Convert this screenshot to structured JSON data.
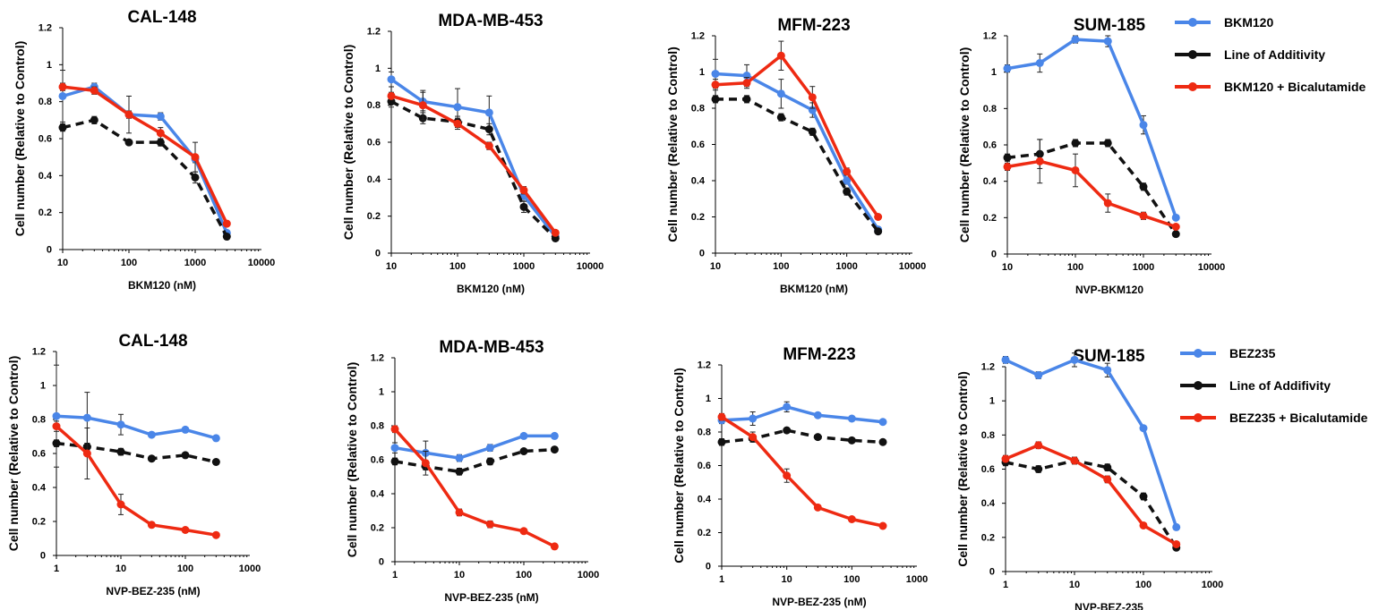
{
  "colors": {
    "blue": "#4a86e8",
    "black": "#111111",
    "red": "#ee2a12"
  },
  "legends": [
    {
      "items": [
        {
          "label": "BKM120",
          "color": "#4a86e8",
          "dashed": false
        },
        {
          "label": "Line of Additivity",
          "color": "#111111",
          "dashed": false
        },
        {
          "label": "BKM120 + Bicalutamide",
          "color": "#ee2a12",
          "dashed": false
        }
      ]
    },
    {
      "items": [
        {
          "label": "BEZ235",
          "color": "#4a86e8",
          "dashed": false
        },
        {
          "label": "Line of Addifivity",
          "color": "#111111",
          "dashed": false
        },
        {
          "label": "BEZ235 + Bicalutamide",
          "color": "#ee2a12",
          "dashed": false
        }
      ]
    }
  ],
  "chart_data": [
    {
      "type": "line",
      "title": "CAL-148",
      "xlabel": "BKM120 (nM)",
      "ylabel": "Cell number (Relative to Control)",
      "xscale": "log",
      "xlim": [
        10,
        10000
      ],
      "xticks": [
        "10",
        "100",
        "1000",
        "10000"
      ],
      "ylim": [
        0,
        1.2
      ],
      "yticks": [
        "0",
        "0.2",
        "0.4",
        "0.6",
        "0.8",
        "1",
        "1.2"
      ],
      "x": [
        10,
        30,
        100,
        300,
        1000,
        3000
      ],
      "series": [
        {
          "color": "#4a86e8",
          "dashed": false,
          "values": [
            0.83,
            0.88,
            0.73,
            0.72,
            0.49,
            0.09
          ],
          "err": [
            0.14,
            0.02,
            0.02,
            0.02,
            0.02,
            0.01
          ]
        },
        {
          "color": "#111111",
          "dashed": true,
          "values": [
            0.66,
            0.7,
            0.58,
            0.58,
            0.39,
            0.07
          ],
          "err": [
            0.02,
            0.02,
            0.01,
            0.02,
            0.03,
            0.01
          ]
        },
        {
          "color": "#ee2a12",
          "dashed": false,
          "values": [
            0.88,
            0.86,
            0.73,
            0.63,
            0.5,
            0.14
          ],
          "err": [
            0.02,
            0.02,
            0.1,
            0.03,
            0.08,
            0.01
          ]
        }
      ]
    },
    {
      "type": "line",
      "title": "MDA-MB-453",
      "xlabel": "BKM120 (nM)",
      "ylabel": "Cell number (Relative to Control)",
      "xscale": "log",
      "xlim": [
        10,
        10000
      ],
      "xticks": [
        "10",
        "100",
        "1000",
        "10000"
      ],
      "ylim": [
        0,
        1.2
      ],
      "yticks": [
        "0",
        "0.2",
        "0.4",
        "0.6",
        "0.8",
        "1",
        "1.2"
      ],
      "x": [
        10,
        30,
        100,
        300,
        1000,
        3000
      ],
      "series": [
        {
          "color": "#4a86e8",
          "dashed": false,
          "values": [
            0.94,
            0.82,
            0.79,
            0.76,
            0.31,
            0.09
          ],
          "err": [
            0.04,
            0.05,
            0.1,
            0.09,
            0.03,
            0.01
          ]
        },
        {
          "color": "#111111",
          "dashed": true,
          "values": [
            0.82,
            0.73,
            0.71,
            0.67,
            0.25,
            0.08
          ],
          "err": [
            0.03,
            0.03,
            0.03,
            0.03,
            0.03,
            0.01
          ]
        },
        {
          "color": "#ee2a12",
          "dashed": false,
          "values": [
            0.85,
            0.8,
            0.7,
            0.58,
            0.34,
            0.11
          ],
          "err": [
            0.02,
            0.08,
            0.03,
            0.02,
            0.02,
            0.01
          ]
        }
      ]
    },
    {
      "type": "line",
      "title": "MFM-223",
      "xlabel": "BKM120 (nM)",
      "ylabel": "Cell number (Relative to Control)",
      "xscale": "log",
      "xlim": [
        10,
        10000
      ],
      "xticks": [
        "10",
        "100",
        "1000",
        "10000"
      ],
      "ylim": [
        0,
        1.2
      ],
      "yticks": [
        "0",
        "0.2",
        "0.4",
        "0.6",
        "0.8",
        "1",
        "1.2"
      ],
      "x": [
        10,
        30,
        100,
        300,
        1000,
        3000
      ],
      "series": [
        {
          "color": "#4a86e8",
          "dashed": false,
          "values": [
            0.99,
            0.98,
            0.88,
            0.79,
            0.4,
            0.13
          ],
          "err": [
            0.08,
            0.06,
            0.08,
            0.04,
            0.02,
            0.01
          ]
        },
        {
          "color": "#111111",
          "dashed": true,
          "values": [
            0.85,
            0.85,
            0.75,
            0.67,
            0.34,
            0.12
          ],
          "err": [
            0.02,
            0.02,
            0.02,
            0.02,
            0.02,
            0.01
          ]
        },
        {
          "color": "#ee2a12",
          "dashed": false,
          "values": [
            0.93,
            0.94,
            1.09,
            0.86,
            0.45,
            0.2
          ],
          "err": [
            0.03,
            0.03,
            0.08,
            0.06,
            0.02,
            0.01
          ]
        }
      ]
    },
    {
      "type": "line",
      "title": "SUM-185",
      "xlabel": "NVP-BKM120",
      "ylabel": "Cell number (Relative to Control)",
      "xscale": "log",
      "xlim": [
        10,
        10000
      ],
      "xticks": [
        "10",
        "100",
        "1000",
        "10000"
      ],
      "ylim": [
        0,
        1.2
      ],
      "yticks": [
        "0",
        "0.2",
        "0.4",
        "0.6",
        "0.8",
        "1",
        "1.2"
      ],
      "x": [
        10,
        30,
        100,
        300,
        1000,
        3000
      ],
      "series": [
        {
          "color": "#4a86e8",
          "dashed": false,
          "values": [
            1.02,
            1.05,
            1.18,
            1.17,
            0.71,
            0.2
          ],
          "err": [
            0.02,
            0.05,
            0.02,
            0.03,
            0.05,
            0.01
          ]
        },
        {
          "color": "#111111",
          "dashed": true,
          "values": [
            0.53,
            0.55,
            0.61,
            0.61,
            0.37,
            0.11
          ],
          "err": [
            0.02,
            0.08,
            0.02,
            0.02,
            0.02,
            0.01
          ]
        },
        {
          "color": "#ee2a12",
          "dashed": false,
          "values": [
            0.48,
            0.51,
            0.46,
            0.28,
            0.21,
            0.15
          ],
          "err": [
            0.02,
            0.12,
            0.09,
            0.05,
            0.02,
            0.01
          ]
        }
      ]
    },
    {
      "type": "line",
      "title": "CAL-148",
      "xlabel": "NVP-BEZ-235 (nM)",
      "ylabel": "Cell number (Relative to Control)",
      "xscale": "log",
      "xlim": [
        1,
        1000
      ],
      "xticks": [
        "1",
        "10",
        "100",
        "1000"
      ],
      "ylim": [
        0,
        1.2
      ],
      "yticks": [
        "0",
        "0.2",
        "0.4",
        "0.6",
        "0.8",
        "1",
        "1.2"
      ],
      "x": [
        1,
        3,
        10,
        30,
        100,
        300
      ],
      "series": [
        {
          "color": "#4a86e8",
          "dashed": false,
          "values": [
            0.82,
            0.81,
            0.77,
            0.71,
            0.74,
            0.69
          ],
          "err": [
            0.3,
            0.15,
            0.06,
            0.01,
            0.01,
            0.01
          ]
        },
        {
          "color": "#111111",
          "dashed": true,
          "values": [
            0.66,
            0.64,
            0.61,
            0.57,
            0.59,
            0.55
          ],
          "err": [
            0.02,
            0.02,
            0.02,
            0.01,
            0.01,
            0.01
          ]
        },
        {
          "color": "#ee2a12",
          "dashed": false,
          "values": [
            0.76,
            0.6,
            0.3,
            0.18,
            0.15,
            0.12
          ],
          "err": [
            0.03,
            0.15,
            0.06,
            0.01,
            0.01,
            0.01
          ]
        }
      ]
    },
    {
      "type": "line",
      "title": "MDA-MB-453",
      "xlabel": "NVP-BEZ-235 (nM)",
      "ylabel": "Cell number (Relative to Control)",
      "xscale": "log",
      "xlim": [
        1,
        1000
      ],
      "xticks": [
        "1",
        "10",
        "100",
        "1000"
      ],
      "ylim": [
        0,
        1.2
      ],
      "yticks": [
        "0",
        "0.2",
        "0.4",
        "0.6",
        "0.8",
        "1",
        "1.2"
      ],
      "x": [
        1,
        3,
        10,
        30,
        100,
        300
      ],
      "series": [
        {
          "color": "#4a86e8",
          "dashed": false,
          "values": [
            0.67,
            0.64,
            0.61,
            0.67,
            0.74,
            0.74
          ],
          "err": [
            0.03,
            0.07,
            0.02,
            0.02,
            0.01,
            0.01
          ]
        },
        {
          "color": "#111111",
          "dashed": true,
          "values": [
            0.59,
            0.56,
            0.53,
            0.59,
            0.65,
            0.66
          ],
          "err": [
            0.02,
            0.02,
            0.02,
            0.02,
            0.01,
            0.01
          ]
        },
        {
          "color": "#ee2a12",
          "dashed": false,
          "values": [
            0.78,
            0.58,
            0.29,
            0.22,
            0.18,
            0.09
          ],
          "err": [
            0.02,
            0.07,
            0.02,
            0.02,
            0.01,
            0.01
          ]
        }
      ]
    },
    {
      "type": "line",
      "title": "MFM-223",
      "xlabel": "NVP-BEZ-235 (nM)",
      "ylabel": "Cell number (Relative to Control)",
      "xscale": "log",
      "xlim": [
        1,
        1000
      ],
      "xticks": [
        "1",
        "10",
        "100",
        "1000"
      ],
      "ylim": [
        0,
        1.2
      ],
      "yticks": [
        "0",
        "0.2",
        "0.4",
        "0.6",
        "0.8",
        "1",
        "1.2"
      ],
      "x": [
        1,
        3,
        10,
        30,
        100,
        300
      ],
      "series": [
        {
          "color": "#4a86e8",
          "dashed": false,
          "values": [
            0.87,
            0.88,
            0.95,
            0.9,
            0.88,
            0.86
          ],
          "err": [
            0.02,
            0.04,
            0.03,
            0.01,
            0.01,
            0.01
          ]
        },
        {
          "color": "#111111",
          "dashed": true,
          "values": [
            0.74,
            0.76,
            0.81,
            0.77,
            0.75,
            0.74
          ],
          "err": [
            0.02,
            0.02,
            0.01,
            0.01,
            0.01,
            0.01
          ]
        },
        {
          "color": "#ee2a12",
          "dashed": false,
          "values": [
            0.89,
            0.77,
            0.54,
            0.35,
            0.28,
            0.24
          ],
          "err": [
            0.02,
            0.03,
            0.04,
            0.01,
            0.01,
            0.01
          ]
        }
      ]
    },
    {
      "type": "line",
      "title": "SUM-185",
      "xlabel": "NVP-BEZ-235",
      "ylabel": "Cell number (Relative to Control)",
      "xscale": "log",
      "xlim": [
        1,
        1000
      ],
      "xticks": [
        "1",
        "10",
        "100",
        "1000"
      ],
      "ylim": [
        0,
        1.2
      ],
      "yticks": [
        "0",
        "0.2",
        "0.4",
        "0.6",
        "0.8",
        "1",
        "1.2"
      ],
      "x": [
        1,
        3,
        10,
        30,
        100,
        300
      ],
      "series": [
        {
          "color": "#4a86e8",
          "dashed": false,
          "values": [
            1.24,
            1.15,
            1.24,
            1.18,
            0.84,
            0.26
          ],
          "err": [
            0.02,
            0.02,
            0.04,
            0.04,
            0.01,
            0.01
          ]
        },
        {
          "color": "#111111",
          "dashed": true,
          "values": [
            0.64,
            0.6,
            0.65,
            0.61,
            0.44,
            0.14
          ],
          "err": [
            0.02,
            0.02,
            0.02,
            0.02,
            0.02,
            0.01
          ]
        },
        {
          "color": "#ee2a12",
          "dashed": false,
          "values": [
            0.66,
            0.74,
            0.65,
            0.54,
            0.27,
            0.16
          ],
          "err": [
            0.02,
            0.02,
            0.02,
            0.02,
            0.01,
            0.01
          ]
        }
      ]
    }
  ]
}
